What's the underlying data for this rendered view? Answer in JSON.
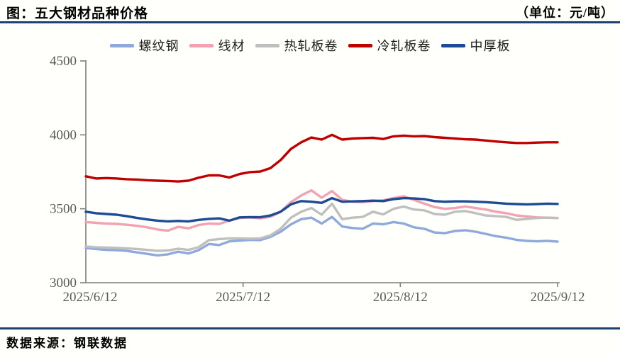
{
  "header": {
    "title": "图：五大钢材品种价格",
    "unit": "（单位：元/吨）"
  },
  "footer": {
    "source": "数据来源：钢联数据"
  },
  "colors": {
    "rule_navy": "#1F4077",
    "axis_line": "#7F7F7F",
    "tick_label": "#595959",
    "background": "#FFFFFC"
  },
  "chart_data": {
    "type": "line",
    "title": "五大钢材品种价格",
    "unit": "元/吨",
    "grid": false,
    "legend_position": "top",
    "ylim": [
      3000,
      4500
    ],
    "yticks": [
      3000,
      3500,
      4000,
      4500
    ],
    "xtick_labels": [
      "2025/6/12",
      "2025/7/12",
      "2025/8/12",
      "2025/9/12"
    ],
    "x": [
      "2025/6/12",
      "2025/6/14",
      "2025/6/16",
      "2025/6/18",
      "2025/6/20",
      "2025/6/22",
      "2025/6/24",
      "2025/6/26",
      "2025/6/28",
      "2025/6/30",
      "2025/7/2",
      "2025/7/4",
      "2025/7/6",
      "2025/7/8",
      "2025/7/10",
      "2025/7/12",
      "2025/7/14",
      "2025/7/16",
      "2025/7/18",
      "2025/7/20",
      "2025/7/22",
      "2025/7/24",
      "2025/7/26",
      "2025/7/28",
      "2025/7/30",
      "2025/8/1",
      "2025/8/3",
      "2025/8/5",
      "2025/8/7",
      "2025/8/9",
      "2025/8/11",
      "2025/8/13",
      "2025/8/15",
      "2025/8/17",
      "2025/8/19",
      "2025/8/21",
      "2025/8/23",
      "2025/8/25",
      "2025/8/27",
      "2025/8/29",
      "2025/8/31",
      "2025/9/2",
      "2025/9/4",
      "2025/9/6",
      "2025/9/8",
      "2025/9/10",
      "2025/9/12"
    ],
    "series": [
      {
        "key": "rebar",
        "name": "螺纹钢",
        "color": "#8EA9DB",
        "values": [
          3235,
          3228,
          3222,
          3220,
          3215,
          3205,
          3195,
          3185,
          3192,
          3210,
          3198,
          3220,
          3262,
          3255,
          3280,
          3285,
          3290,
          3288,
          3310,
          3345,
          3395,
          3430,
          3440,
          3400,
          3445,
          3380,
          3370,
          3365,
          3400,
          3395,
          3410,
          3400,
          3375,
          3365,
          3340,
          3335,
          3350,
          3355,
          3345,
          3330,
          3315,
          3305,
          3290,
          3283,
          3280,
          3283,
          3278
        ]
      },
      {
        "key": "wire-rod",
        "name": "线材",
        "color": "#F2A2B1",
        "values": [
          3410,
          3405,
          3400,
          3398,
          3392,
          3385,
          3375,
          3360,
          3352,
          3378,
          3368,
          3390,
          3400,
          3398,
          3420,
          3438,
          3442,
          3435,
          3445,
          3480,
          3545,
          3590,
          3625,
          3575,
          3620,
          3560,
          3548,
          3545,
          3552,
          3558,
          3572,
          3585,
          3560,
          3535,
          3512,
          3500,
          3505,
          3515,
          3505,
          3495,
          3480,
          3470,
          3455,
          3448,
          3442,
          3440,
          3438
        ]
      },
      {
        "key": "hot-rolled-coil",
        "name": "热轧板卷",
        "color": "#BFBFBF",
        "values": [
          3245,
          3240,
          3238,
          3236,
          3232,
          3228,
          3222,
          3215,
          3218,
          3230,
          3222,
          3240,
          3288,
          3295,
          3300,
          3300,
          3298,
          3300,
          3320,
          3365,
          3440,
          3480,
          3505,
          3460,
          3535,
          3430,
          3440,
          3445,
          3480,
          3462,
          3500,
          3515,
          3495,
          3490,
          3465,
          3460,
          3480,
          3485,
          3470,
          3455,
          3450,
          3445,
          3425,
          3432,
          3438,
          3440,
          3437
        ]
      },
      {
        "key": "cold-rolled-coil",
        "name": "冷轧板卷",
        "color": "#C00000",
        "values": [
          3720,
          3705,
          3708,
          3705,
          3700,
          3698,
          3693,
          3690,
          3688,
          3685,
          3690,
          3710,
          3726,
          3726,
          3712,
          3735,
          3748,
          3752,
          3775,
          3830,
          3905,
          3950,
          3982,
          3968,
          4000,
          3968,
          3975,
          3978,
          3980,
          3972,
          3990,
          3995,
          3990,
          3992,
          3985,
          3980,
          3975,
          3970,
          3968,
          3962,
          3955,
          3950,
          3945,
          3945,
          3948,
          3950,
          3950
        ]
      },
      {
        "key": "medium-plate",
        "name": "中厚板",
        "color": "#1D4B95",
        "values": [
          3480,
          3470,
          3465,
          3460,
          3450,
          3438,
          3428,
          3420,
          3415,
          3418,
          3415,
          3425,
          3432,
          3435,
          3420,
          3442,
          3444,
          3443,
          3455,
          3480,
          3530,
          3552,
          3548,
          3540,
          3572,
          3548,
          3550,
          3552,
          3555,
          3552,
          3565,
          3572,
          3570,
          3565,
          3552,
          3548,
          3550,
          3550,
          3548,
          3545,
          3540,
          3535,
          3532,
          3530,
          3532,
          3535,
          3533
        ]
      }
    ]
  }
}
